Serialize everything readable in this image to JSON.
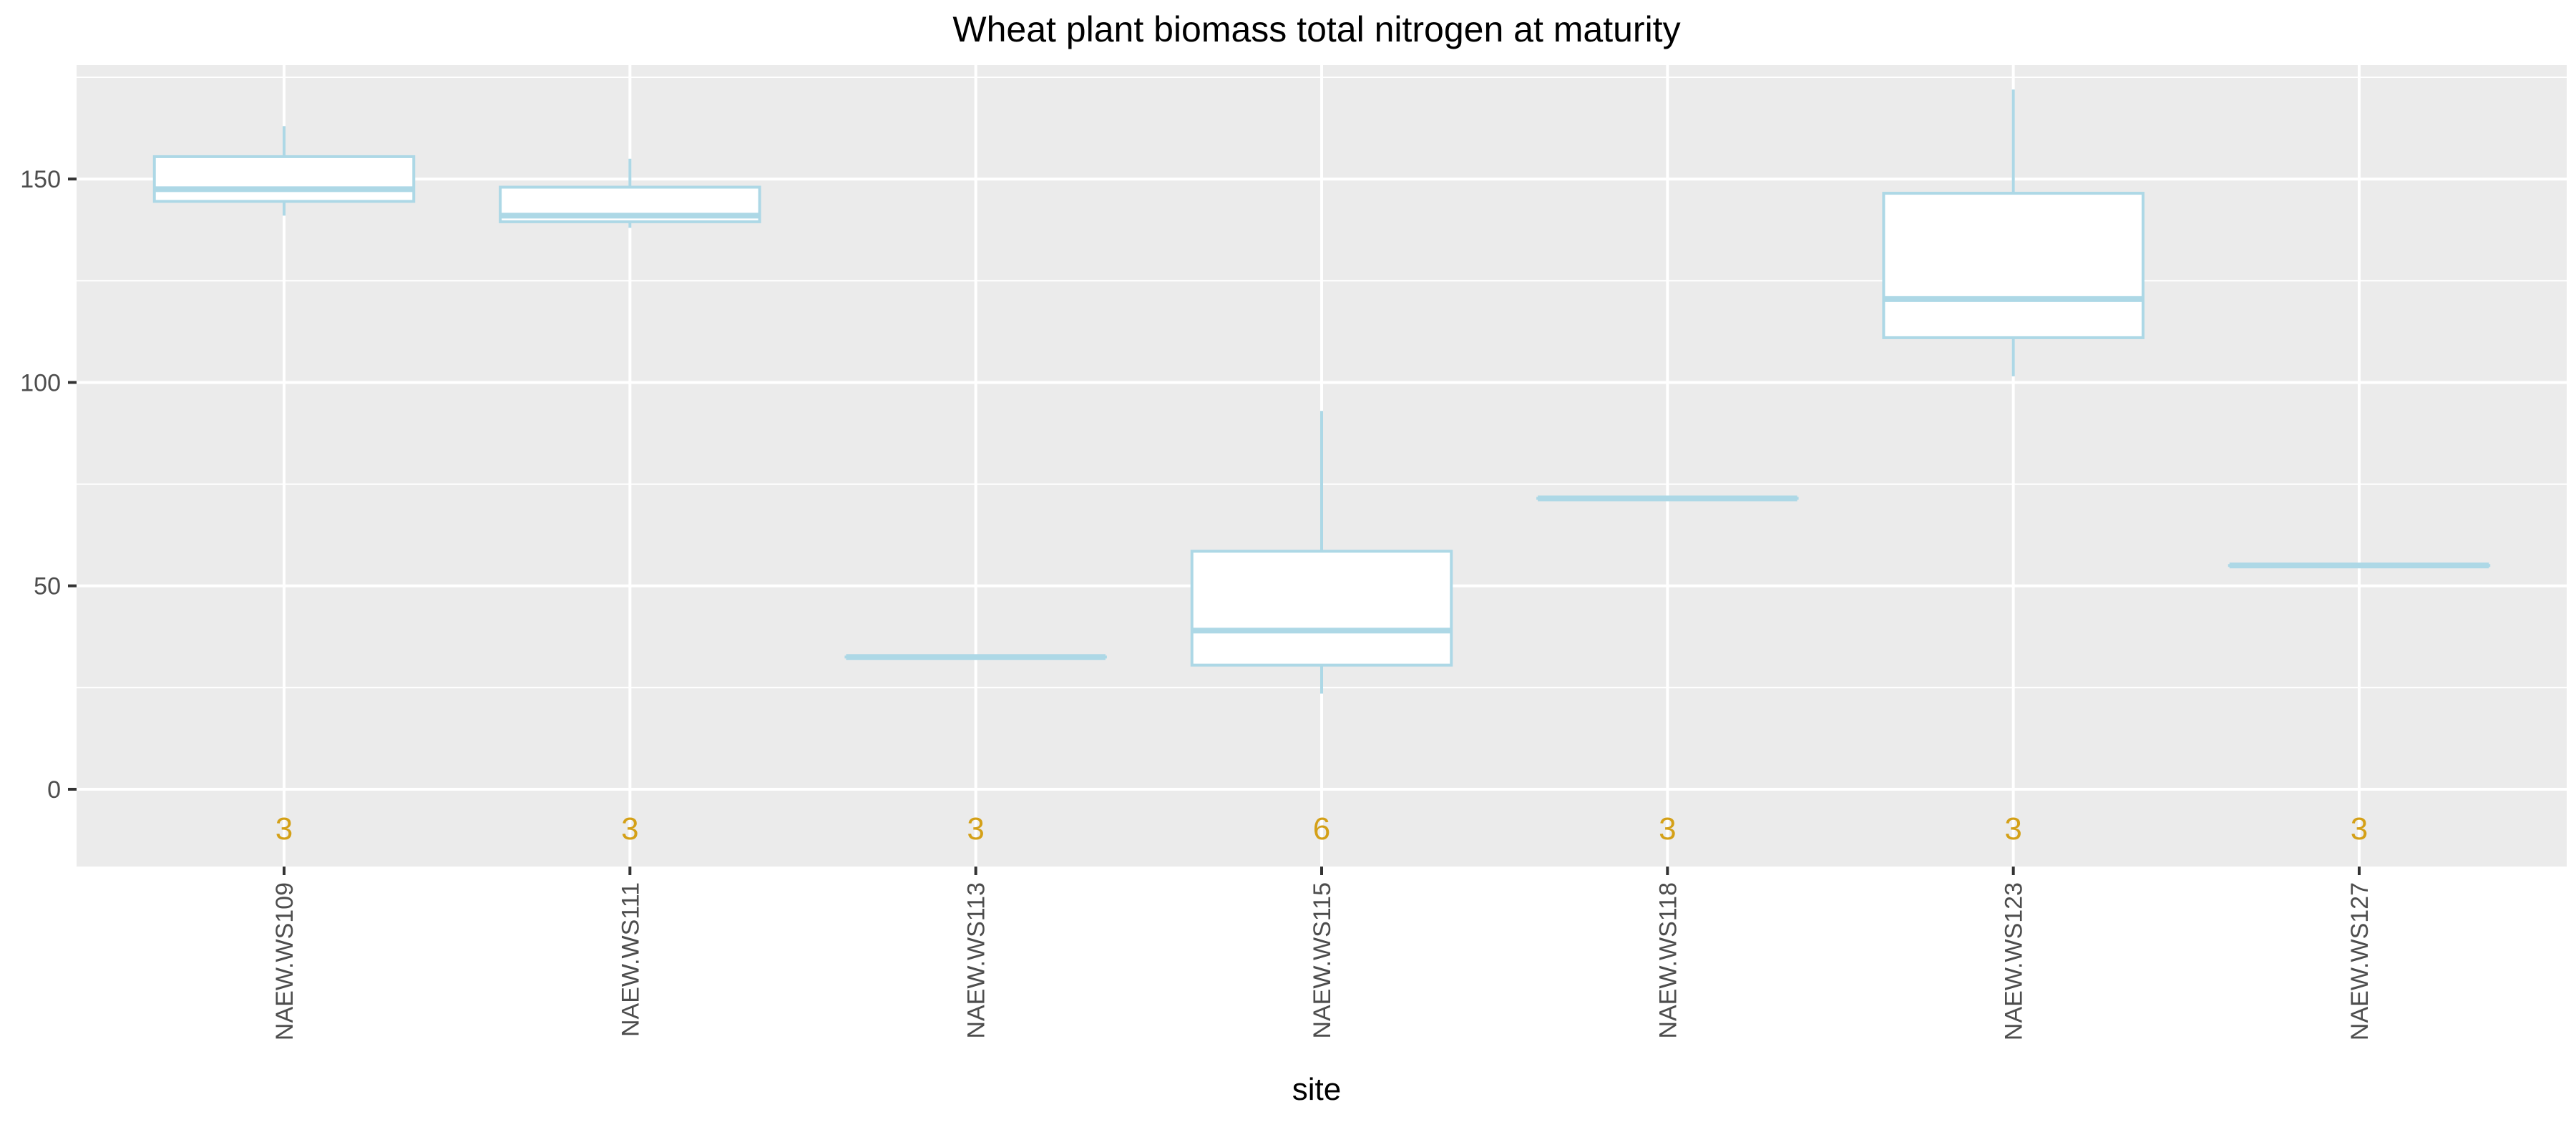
{
  "chart_data": {
    "type": "boxplot",
    "title": "Wheat plant biomass total nitrogen at maturity",
    "xlabel": "site",
    "ylabel": "",
    "ylim": [
      -19,
      178
    ],
    "yticks": [
      0,
      50,
      100,
      150
    ],
    "grid": true,
    "colors": {
      "panel_bg": "#ebebeb",
      "grid": "#ffffff",
      "box_stroke": "#add8e6",
      "box_fill": "#ffffff",
      "count_label": "#d4a017",
      "tick_text": "#4d4d4d",
      "title_text": "#000000"
    },
    "categories": [
      "NAEW.WS109",
      "NAEW.WS111",
      "NAEW.WS113",
      "NAEW.WS115",
      "NAEW.WS118",
      "NAEW.WS123",
      "NAEW.WS127"
    ],
    "boxes": [
      {
        "min": 141,
        "q1": 144.5,
        "median": 147.5,
        "q3": 155.5,
        "max": 163,
        "n": "3"
      },
      {
        "min": 138,
        "q1": 139.5,
        "median": 141,
        "q3": 148,
        "max": 155,
        "n": "3"
      },
      {
        "min": 32.5,
        "q1": 32.5,
        "median": 32.5,
        "q3": 32.5,
        "max": 32.5,
        "n": "3"
      },
      {
        "min": 23.5,
        "q1": 30.5,
        "median": 39,
        "q3": 58.5,
        "max": 93,
        "n": "6"
      },
      {
        "min": 71.5,
        "q1": 71.5,
        "median": 71.5,
        "q3": 71.5,
        "max": 71.5,
        "n": "3"
      },
      {
        "min": 101.5,
        "q1": 111,
        "median": 120.5,
        "q3": 146.5,
        "max": 172,
        "n": "3"
      },
      {
        "min": 55,
        "q1": 55,
        "median": 55,
        "q3": 55,
        "max": 55,
        "n": "3"
      }
    ],
    "count_label_y": -9.5
  }
}
